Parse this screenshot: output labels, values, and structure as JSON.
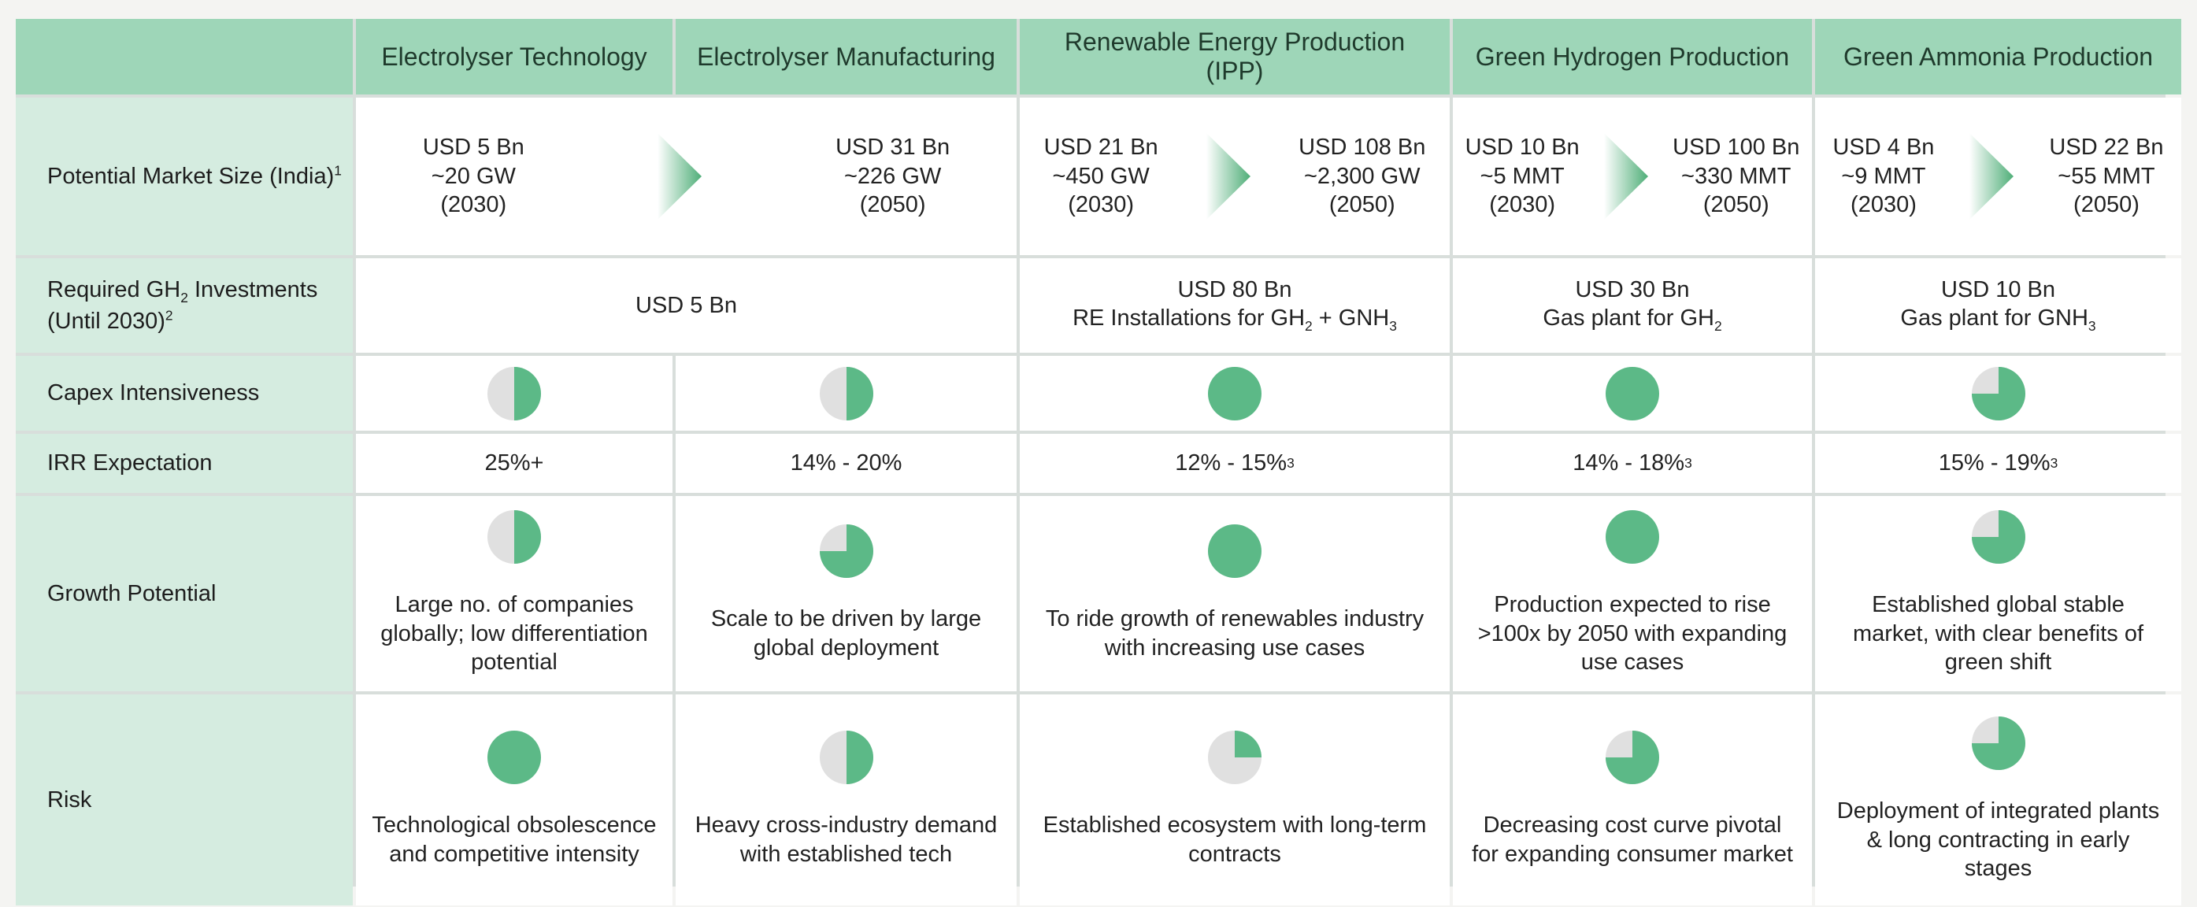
{
  "colors": {
    "accent": "#5cb987",
    "header": "#9ed6b8",
    "label_bg": "#d5ece0",
    "pie_empty": "#e0e0e0"
  },
  "headers": [
    "Electrolyser Technology",
    "Electrolyser Manufacturing",
    "Renewable Energy Production (IPP)",
    "Green Hydrogen Production",
    "Green Ammonia Production"
  ],
  "rows": {
    "market": {
      "label": "Potential Market Size (India)",
      "label_sup": "1",
      "cells": [
        {
          "from": [
            "USD 5 Bn",
            "~20 GW",
            "(2030)"
          ],
          "to": [
            "USD 31 Bn",
            "~226 GW",
            "(2050)"
          ]
        },
        {
          "from": [
            "USD 21 Bn",
            "~450 GW",
            "(2030)"
          ],
          "to": [
            "USD 108 Bn",
            "~2,300 GW",
            "(2050)"
          ]
        },
        {
          "from": [
            "USD 10 Bn",
            "~5 MMT",
            "(2030)"
          ],
          "to": [
            "USD 100 Bn",
            "~330 MMT",
            "(2050)"
          ]
        },
        {
          "from": [
            "USD 4 Bn",
            "~9 MMT",
            "(2030)"
          ],
          "to": [
            "USD 22 Bn",
            "~55 MMT",
            "(2050)"
          ]
        }
      ]
    },
    "investment": {
      "label_pre": "Required GH",
      "label_sub": "2",
      "label_post": " Investments",
      "label_line2": "(Until 2030)",
      "label_sup": "2",
      "electrolyser": "USD 5 Bn",
      "re_amount": "USD 80 Bn",
      "re_desc_pre": "RE Installations for GH",
      "re_desc_sub1": "2",
      "re_desc_mid": " + GNH",
      "re_desc_sub2": "3",
      "gh_amount": "USD 30 Bn",
      "gh_desc_pre": "Gas plant for GH",
      "gh_desc_sub": "2",
      "ga_amount": "USD 10 Bn",
      "ga_desc_pre": "Gas plant for GNH",
      "ga_desc_sub": "3"
    },
    "capex": {
      "label": "Capex Intensiveness",
      "levels": [
        0.5,
        0.5,
        1.0,
        1.0,
        0.75
      ]
    },
    "irr": {
      "label": "IRR Expectation",
      "values": [
        "25%+",
        "14% - 20%",
        "12% - 15% ",
        "14% - 18% ",
        "15% - 19% "
      ],
      "sups": [
        "",
        "",
        "3",
        "3",
        "3"
      ]
    },
    "growth": {
      "label": "Growth Potential",
      "levels": [
        0.5,
        0.75,
        1.0,
        1.0,
        0.75
      ],
      "texts": [
        "Large no. of companies globally; low differentiation potential",
        "Scale to be driven by large global deployment",
        "To ride growth of renewables industry with increasing use cases",
        "Production expected to rise >100x by 2050 with expanding use cases",
        "Established global stable market, with clear benefits of green shift"
      ]
    },
    "risk": {
      "label": "Risk",
      "levels": [
        1.0,
        0.5,
        0.25,
        0.75,
        0.75
      ],
      "texts": [
        "Technological obsolescence and competitive intensity",
        "Heavy cross-industry demand with established tech",
        "Established ecosystem with long-term contracts",
        "Decreasing cost curve pivotal for expanding consumer market",
        "Deployment of integrated plants & long contracting in early stages"
      ]
    }
  }
}
